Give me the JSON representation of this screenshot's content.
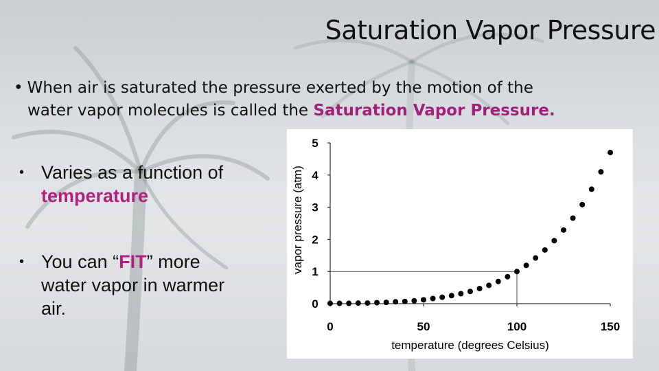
{
  "slide": {
    "title": "Saturation Vapor Pressure",
    "bullet_main": {
      "prefix_line1": "When air is saturated the pressure exerted by the motion of the",
      "prefix_line2": "water vapor molecules is called the ",
      "highlight": "Saturation Vapor Pressure."
    },
    "sub_bullets": [
      {
        "text_before": "Varies as a function of ",
        "highlight": "temperature",
        "text_after": ""
      },
      {
        "text_before": "You can “",
        "highlight": "FIT",
        "text_after": "” more water vapor in warmer air."
      }
    ],
    "bullet_glyph": "•"
  },
  "colors": {
    "highlight": "#a0207a",
    "text": "#111111"
  },
  "chart_data": {
    "type": "scatter",
    "title": "",
    "xlabel": "temperature (degrees Celsius)",
    "ylabel": "vapor pressure (atm)",
    "xlim": [
      0,
      150
    ],
    "ylim": [
      0,
      5
    ],
    "x_ticks": [
      0,
      50,
      100,
      150
    ],
    "y_ticks": [
      0,
      1,
      2,
      3,
      4,
      5
    ],
    "grid": false,
    "reference_point": {
      "x": 100,
      "y": 1
    },
    "series": [
      {
        "x": [
          0,
          5,
          10,
          15,
          20,
          25,
          30,
          35,
          40,
          45,
          50,
          55,
          60,
          65,
          70,
          75,
          80,
          85,
          90,
          95,
          100,
          105,
          110,
          115,
          120,
          125,
          130,
          135,
          140,
          145,
          150
        ],
        "y": [
          0.01,
          0.01,
          0.01,
          0.02,
          0.02,
          0.03,
          0.04,
          0.06,
          0.07,
          0.09,
          0.12,
          0.16,
          0.2,
          0.25,
          0.31,
          0.38,
          0.47,
          0.57,
          0.69,
          0.84,
          1.0,
          1.19,
          1.42,
          1.67,
          1.96,
          2.29,
          2.66,
          3.08,
          3.56,
          4.1,
          4.7
        ]
      }
    ]
  }
}
